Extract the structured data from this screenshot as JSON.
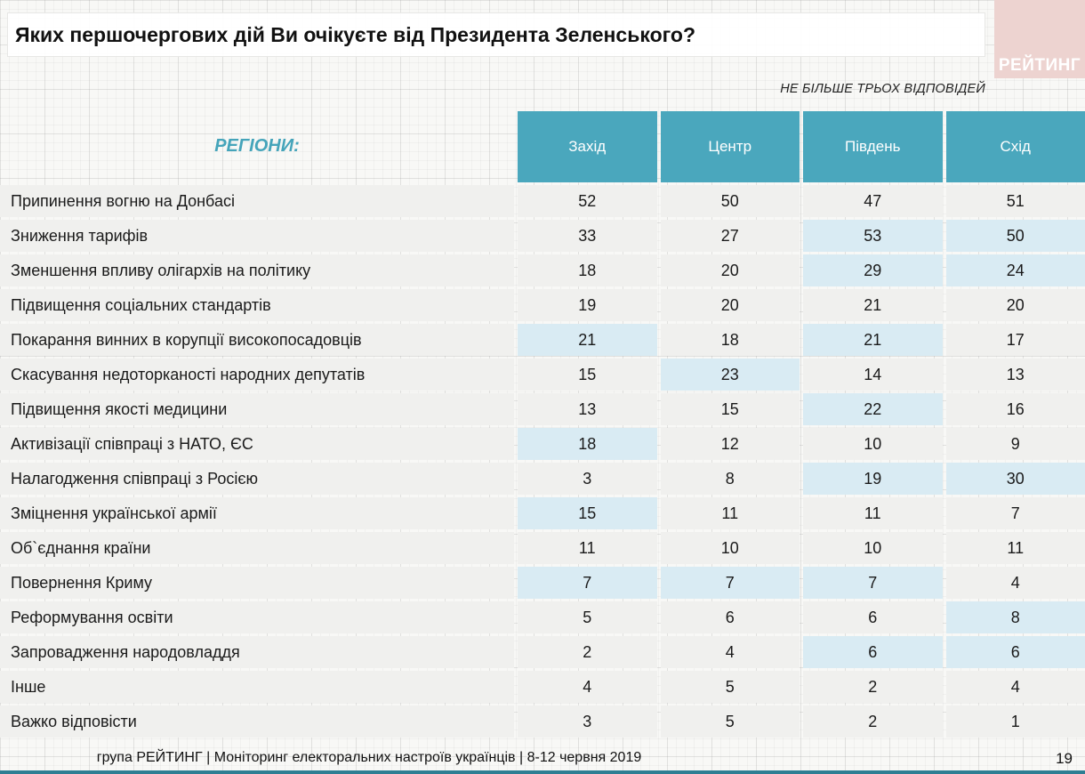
{
  "slide": {
    "title": "Яких першочергових дій Ви очікуєте від Президента Зеленського?",
    "logo_text": "РЕЙТИНГ",
    "note": "НЕ БІЛЬШЕ ТРЬОХ ВІДПОВІДЕЙ",
    "regions_label": "РЕГІОНИ:",
    "footer": "група РЕЙТИНГ | Моніторинг електоральних настроїв українців  | 8-12 червня 2019",
    "page_number": "19"
  },
  "colors": {
    "header_teal": "#4aa7bd",
    "cell_gray": "#f0f0ee",
    "highlight_blue": "#d9ebf3",
    "logo_pink": "#edd3d0",
    "regions_teal": "#45a4ba",
    "bottom_bar_teal": "#2e7e93"
  },
  "chart_data": {
    "type": "table",
    "title": "Яких першочергових дій Ви очікуєте від Президента Зеленського?",
    "note": "НЕ БІЛЬШЕ ТРЬОХ ВІДПОВІДЕЙ",
    "group_label": "РЕГІОНИ:",
    "columns": [
      "Захід",
      "Центр",
      "Південь",
      "Схід"
    ],
    "rows": [
      {
        "label": "Припинення вогню на Донбасі",
        "values": [
          52,
          50,
          47,
          51
        ],
        "highlight": [
          false,
          false,
          false,
          false
        ]
      },
      {
        "label": "Зниження тарифів",
        "values": [
          33,
          27,
          53,
          50
        ],
        "highlight": [
          false,
          false,
          true,
          true
        ]
      },
      {
        "label": "Зменшення впливу олігархів на політику",
        "values": [
          18,
          20,
          29,
          24
        ],
        "highlight": [
          false,
          false,
          true,
          true
        ]
      },
      {
        "label": "Підвищення соціальних стандартів",
        "values": [
          19,
          20,
          21,
          20
        ],
        "highlight": [
          false,
          false,
          false,
          false
        ]
      },
      {
        "label": "Покарання винних в корупції високопосадовців",
        "values": [
          21,
          18,
          21,
          17
        ],
        "highlight": [
          true,
          false,
          true,
          false
        ]
      },
      {
        "label": "Скасування недоторканості народних депутатів",
        "values": [
          15,
          23,
          14,
          13
        ],
        "highlight": [
          false,
          true,
          false,
          false
        ]
      },
      {
        "label": "Підвищення якості медицини",
        "values": [
          13,
          15,
          22,
          16
        ],
        "highlight": [
          false,
          false,
          true,
          false
        ]
      },
      {
        "label": "Активізації співпраці з НАТО, ЄС",
        "values": [
          18,
          12,
          10,
          9
        ],
        "highlight": [
          true,
          false,
          false,
          false
        ]
      },
      {
        "label": "Налагодження співпраці з Росією",
        "values": [
          3,
          8,
          19,
          30
        ],
        "highlight": [
          false,
          false,
          true,
          true
        ]
      },
      {
        "label": "Зміцнення української армії",
        "values": [
          15,
          11,
          11,
          7
        ],
        "highlight": [
          true,
          false,
          false,
          false
        ]
      },
      {
        "label": "Об`єднання країни",
        "values": [
          11,
          10,
          10,
          11
        ],
        "highlight": [
          false,
          false,
          false,
          false
        ]
      },
      {
        "label": "Повернення Криму",
        "values": [
          7,
          7,
          7,
          4
        ],
        "highlight": [
          true,
          true,
          true,
          false
        ]
      },
      {
        "label": "Реформування освіти",
        "values": [
          5,
          6,
          6,
          8
        ],
        "highlight": [
          false,
          false,
          false,
          true
        ]
      },
      {
        "label": "Запровадження народовладдя",
        "values": [
          2,
          4,
          6,
          6
        ],
        "highlight": [
          false,
          false,
          true,
          true
        ]
      },
      {
        "label": "Інше",
        "values": [
          4,
          5,
          2,
          4
        ],
        "highlight": [
          false,
          false,
          false,
          false
        ]
      },
      {
        "label": "Важко відповісти",
        "values": [
          3,
          5,
          2,
          1
        ],
        "highlight": [
          false,
          false,
          false,
          false
        ]
      }
    ]
  }
}
